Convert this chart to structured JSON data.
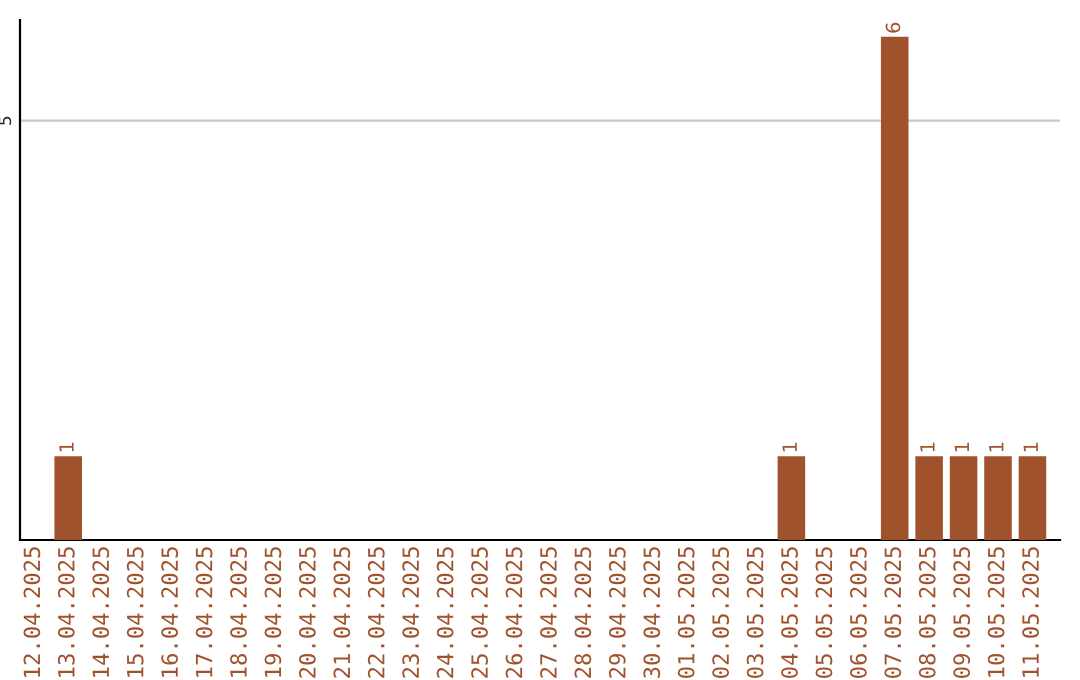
{
  "chart_data": {
    "type": "bar",
    "categories": [
      "12.04.2025",
      "13.04.2025",
      "14.04.2025",
      "15.04.2025",
      "16.04.2025",
      "17.04.2025",
      "18.04.2025",
      "19.04.2025",
      "20.04.2025",
      "21.04.2025",
      "22.04.2025",
      "23.04.2025",
      "24.04.2025",
      "25.04.2025",
      "26.04.2025",
      "27.04.2025",
      "28.04.2025",
      "29.04.2025",
      "30.04.2025",
      "01.05.2025",
      "02.05.2025",
      "03.05.2025",
      "04.05.2025",
      "05.05.2025",
      "06.05.2025",
      "07.05.2025",
      "08.05.2025",
      "09.05.2025",
      "10.05.2025",
      "11.05.2025"
    ],
    "values": [
      0,
      1,
      0,
      0,
      0,
      0,
      0,
      0,
      0,
      0,
      0,
      0,
      0,
      0,
      0,
      0,
      0,
      0,
      0,
      0,
      0,
      0,
      1,
      0,
      0,
      6,
      1,
      1,
      1,
      1
    ],
    "value_labels": [
      null,
      "1",
      null,
      null,
      null,
      null,
      null,
      null,
      null,
      null,
      null,
      null,
      null,
      null,
      null,
      null,
      null,
      null,
      null,
      null,
      null,
      null,
      "1",
      null,
      null,
      "6",
      "1",
      "1",
      "1",
      "1"
    ],
    "color": "#a0522d",
    "ylim": [
      0,
      6.2
    ],
    "yticks": [
      5
    ],
    "grid": "y"
  }
}
